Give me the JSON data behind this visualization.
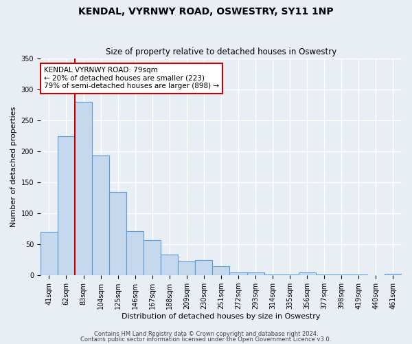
{
  "title": "KENDAL, VYRNWY ROAD, OSWESTRY, SY11 1NP",
  "subtitle": "Size of property relative to detached houses in Oswestry",
  "xlabel": "Distribution of detached houses by size in Oswestry",
  "ylabel": "Number of detached properties",
  "bin_labels": [
    "41sqm",
    "62sqm",
    "83sqm",
    "104sqm",
    "125sqm",
    "146sqm",
    "167sqm",
    "188sqm",
    "209sqm",
    "230sqm",
    "251sqm",
    "272sqm",
    "293sqm",
    "314sqm",
    "335sqm",
    "356sqm",
    "377sqm",
    "398sqm",
    "419sqm",
    "440sqm",
    "461sqm"
  ],
  "bar_values": [
    70,
    224,
    280,
    193,
    134,
    71,
    57,
    34,
    22,
    25,
    15,
    5,
    5,
    1,
    1,
    5,
    1,
    1,
    1,
    0,
    3
  ],
  "bar_color": "#c5d8ed",
  "bar_edge_color": "#5b9bd5",
  "vline_x": 1.5,
  "vline_color": "#cc0000",
  "marker_label": "KENDAL VYRNWY ROAD: 79sqm",
  "annotation_line1": "← 20% of detached houses are smaller (223)",
  "annotation_line2": "79% of semi-detached houses are larger (898) →",
  "annotation_box_facecolor": "#ffffff",
  "annotation_box_edgecolor": "#cc0000",
  "ylim": [
    0,
    350
  ],
  "yticks": [
    0,
    50,
    100,
    150,
    200,
    250,
    300,
    350
  ],
  "figure_bg": "#e8eef4",
  "axes_bg": "#e8eef4",
  "grid_color": "#ffffff",
  "footer1": "Contains HM Land Registry data © Crown copyright and database right 2024.",
  "footer2": "Contains public sector information licensed under the Open Government Licence v3.0.",
  "title_fontsize": 10,
  "subtitle_fontsize": 8.5,
  "xlabel_fontsize": 8,
  "ylabel_fontsize": 8,
  "tick_fontsize": 7,
  "footer_fontsize": 6
}
